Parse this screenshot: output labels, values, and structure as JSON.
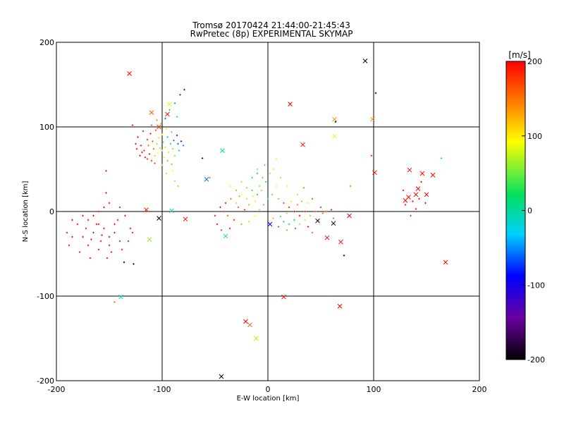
{
  "chart_data": {
    "type": "scatter",
    "title": "Tromsø 20170424 21:44:00-21:45:43",
    "subtitle": "RwPretec (8p) EXPERIMENTAL SKYMAP",
    "xlabel": "E-W location [km]",
    "ylabel": "N-S location [km]",
    "xlim": [
      -200,
      200
    ],
    "ylim": [
      -200,
      200
    ],
    "xticks": [
      "-200",
      "-100",
      "0",
      "100",
      "200"
    ],
    "yticks": [
      "-200",
      "-100",
      "0",
      "100",
      "200"
    ],
    "grid": true,
    "colorbar": {
      "unit": "[m/s]",
      "min": -200,
      "max": 200,
      "ticks": [
        "200",
        "100",
        "0",
        "-100",
        "-200"
      ],
      "colormap": [
        "#000000",
        "#6a00a0",
        "#0000ff",
        "#00d0ff",
        "#00e060",
        "#ffff00",
        "#ff8000",
        "#ff0000"
      ]
    },
    "series": [
      {
        "marker": "x",
        "points": [
          [
            -131,
            163,
            200
          ],
          [
            -110,
            117,
            160
          ],
          [
            -95,
            115,
            190
          ],
          [
            -93,
            127,
            80
          ],
          [
            -103,
            100,
            170
          ],
          [
            -115,
            2,
            190
          ],
          [
            -103,
            -8,
            -200
          ],
          [
            -78,
            -9,
            200
          ],
          [
            -112,
            -33,
            60
          ],
          [
            -58,
            38,
            -60
          ],
          [
            -91,
            1,
            -10
          ],
          [
            -139,
            -101,
            -20
          ],
          [
            -43,
            72,
            20
          ],
          [
            -40,
            -29,
            0
          ],
          [
            -21,
            -130,
            200
          ],
          [
            -17,
            -134,
            160
          ],
          [
            -11,
            -150,
            110
          ],
          [
            -44,
            -195,
            -200
          ],
          [
            2,
            -15,
            -100
          ],
          [
            15,
            -101,
            200
          ],
          [
            21,
            127,
            200
          ],
          [
            33,
            79,
            200
          ],
          [
            47,
            -11,
            -200
          ],
          [
            56,
            -31,
            200
          ],
          [
            62,
            -14,
            -200
          ],
          [
            63,
            109,
            140
          ],
          [
            63,
            89,
            80
          ],
          [
            69,
            -36,
            200
          ],
          [
            68,
            -112,
            200
          ],
          [
            77,
            -5,
            200
          ],
          [
            92,
            178,
            -200
          ],
          [
            99,
            109,
            140
          ],
          [
            101,
            46,
            200
          ],
          [
            134,
            49,
            200
          ],
          [
            146,
            45,
            200
          ],
          [
            156,
            43,
            200
          ],
          [
            150,
            20,
            200
          ],
          [
            142,
            27,
            200
          ],
          [
            140,
            20,
            200
          ],
          [
            133,
            17,
            200
          ],
          [
            130,
            13,
            200
          ],
          [
            168,
            -60,
            200
          ]
        ]
      },
      {
        "marker": "dot",
        "points": [
          [
            -114,
            85,
            190
          ],
          [
            -120,
            78,
            200
          ],
          [
            -117,
            72,
            180
          ],
          [
            -112,
            68,
            200
          ],
          [
            -108,
            74,
            160
          ],
          [
            -105,
            80,
            120
          ],
          [
            -100,
            72,
            80
          ],
          [
            -97,
            76,
            70
          ],
          [
            -110,
            60,
            180
          ],
          [
            -116,
            64,
            200
          ],
          [
            -119,
            70,
            200
          ],
          [
            -113,
            78,
            150
          ],
          [
            -107,
            66,
            110
          ],
          [
            -104,
            69,
            90
          ],
          [
            -102,
            75,
            60
          ],
          [
            -99,
            82,
            40
          ],
          [
            -95,
            88,
            20
          ],
          [
            -92,
            80,
            10
          ],
          [
            -89,
            84,
            -60
          ],
          [
            -86,
            90,
            -80
          ],
          [
            -85,
            80,
            -70
          ],
          [
            -82,
            83,
            -90
          ],
          [
            -80,
            78,
            -60
          ],
          [
            -91,
            94,
            40
          ],
          [
            -96,
            98,
            80
          ],
          [
            -101,
            104,
            130
          ],
          [
            -106,
            96,
            170
          ],
          [
            -111,
            92,
            190
          ],
          [
            -118,
            95,
            200
          ],
          [
            -123,
            88,
            200
          ],
          [
            -124,
            74,
            200
          ],
          [
            -121,
            66,
            200
          ],
          [
            -114,
            62,
            180
          ],
          [
            -98,
            64,
            100
          ],
          [
            -94,
            70,
            70
          ],
          [
            -90,
            74,
            50
          ],
          [
            -88,
            66,
            60
          ],
          [
            -84,
            72,
            -40
          ],
          [
            -97,
            110,
            -60
          ],
          [
            -93,
            120,
            20
          ],
          [
            -88,
            128,
            -50
          ],
          [
            -83,
            138,
            -80
          ],
          [
            -79,
            144,
            -90
          ],
          [
            -86,
            112,
            10
          ],
          [
            -105,
            108,
            140
          ],
          [
            -110,
            102,
            170
          ],
          [
            -128,
            102,
            200
          ],
          [
            -125,
            80,
            200
          ],
          [
            -109,
            83,
            160
          ],
          [
            -103,
            87,
            110
          ],
          [
            -100,
            91,
            90
          ],
          [
            -95,
            60,
            130
          ],
          [
            -91,
            56,
            140
          ],
          [
            -100,
            55,
            120
          ],
          [
            -107,
            57,
            170
          ],
          [
            -96,
            45,
            110
          ],
          [
            -90,
            48,
            90
          ],
          [
            -88,
            36,
            60
          ],
          [
            -85,
            30,
            120
          ],
          [
            -62,
            63,
            -200
          ],
          [
            -55,
            40,
            150
          ],
          [
            -170,
            -10,
            200
          ],
          [
            -160,
            -15,
            200
          ],
          [
            -155,
            -20,
            200
          ],
          [
            -165,
            -25,
            200
          ],
          [
            -175,
            -30,
            200
          ],
          [
            -150,
            -30,
            200
          ],
          [
            -158,
            -35,
            200
          ],
          [
            -145,
            -25,
            200
          ],
          [
            -180,
            -15,
            200
          ],
          [
            -185,
            -30,
            200
          ],
          [
            -170,
            -40,
            200
          ],
          [
            -160,
            -45,
            200
          ],
          [
            -150,
            -40,
            200
          ],
          [
            -140,
            -35,
            200
          ],
          [
            -145,
            -15,
            200
          ],
          [
            -135,
            -5,
            200
          ],
          [
            -130,
            -20,
            200
          ],
          [
            -165,
            -5,
            200
          ],
          [
            -175,
            -5,
            200
          ],
          [
            -185,
            -10,
            200
          ],
          [
            -190,
            -25,
            200
          ],
          [
            -188,
            -40,
            200
          ],
          [
            -178,
            -48,
            200
          ],
          [
            -168,
            -55,
            200
          ],
          [
            -152,
            -55,
            200
          ],
          [
            -148,
            -48,
            200
          ],
          [
            -138,
            -45,
            200
          ],
          [
            -132,
            -35,
            200
          ],
          [
            -128,
            -25,
            200
          ],
          [
            -140,
            5,
            200
          ],
          [
            -150,
            10,
            200
          ],
          [
            -155,
            5,
            200
          ],
          [
            -162,
            -15,
            200
          ],
          [
            -157,
            -28,
            200
          ],
          [
            -167,
            -33,
            200
          ],
          [
            -153,
            22,
            200
          ],
          [
            -153,
            48,
            200
          ],
          [
            -160,
            0,
            200
          ],
          [
            -172,
            -20,
            200
          ],
          [
            -142,
            -10,
            200
          ],
          [
            -136,
            -60,
            -200
          ],
          [
            -127,
            -62,
            -200
          ],
          [
            -145,
            -107,
            160
          ],
          [
            -35,
            15,
            150
          ],
          [
            -30,
            10,
            110
          ],
          [
            -25,
            20,
            90
          ],
          [
            -20,
            15,
            70
          ],
          [
            -15,
            25,
            40
          ],
          [
            -10,
            20,
            20
          ],
          [
            -28,
            5,
            160
          ],
          [
            -22,
            2,
            180
          ],
          [
            -18,
            8,
            130
          ],
          [
            -12,
            12,
            100
          ],
          [
            -8,
            30,
            60
          ],
          [
            -5,
            40,
            40
          ],
          [
            -2,
            35,
            20
          ],
          [
            2,
            45,
            60
          ],
          [
            5,
            50,
            80
          ],
          [
            -30,
            25,
            130
          ],
          [
            -35,
            30,
            90
          ],
          [
            -25,
            35,
            60
          ],
          [
            -15,
            40,
            30
          ],
          [
            -10,
            45,
            10
          ],
          [
            -40,
            10,
            200
          ],
          [
            -42,
            0,
            180
          ],
          [
            -38,
            -5,
            160
          ],
          [
            -32,
            -10,
            190
          ],
          [
            -25,
            -15,
            140
          ],
          [
            -18,
            -12,
            110
          ],
          [
            -12,
            -5,
            90
          ],
          [
            -8,
            2,
            60
          ],
          [
            -4,
            8,
            40
          ],
          [
            0,
            15,
            20
          ],
          [
            -20,
            28,
            50
          ],
          [
            -27,
            18,
            130
          ],
          [
            -14,
            18,
            80
          ],
          [
            -6,
            25,
            60
          ],
          [
            4,
            20,
            40
          ],
          [
            8,
            30,
            100
          ],
          [
            10,
            15,
            130
          ],
          [
            15,
            10,
            170
          ],
          [
            20,
            5,
            190
          ],
          [
            25,
            0,
            200
          ],
          [
            30,
            -5,
            200
          ],
          [
            35,
            0,
            180
          ],
          [
            28,
            8,
            140
          ],
          [
            22,
            12,
            100
          ],
          [
            18,
            -2,
            60
          ],
          [
            12,
            -6,
            30
          ],
          [
            15,
            -12,
            10
          ],
          [
            20,
            -15,
            -10
          ],
          [
            25,
            -10,
            20
          ],
          [
            30,
            -15,
            60
          ],
          [
            35,
            -10,
            100
          ],
          [
            40,
            -5,
            130
          ],
          [
            45,
            0,
            160
          ],
          [
            50,
            5,
            190
          ],
          [
            52,
            -2,
            150
          ],
          [
            26,
            -20,
            180
          ],
          [
            18,
            -22,
            140
          ],
          [
            10,
            -18,
            170
          ],
          [
            5,
            -8,
            120
          ],
          [
            38,
            -18,
            200
          ],
          [
            42,
            -25,
            160
          ],
          [
            48,
            -12,
            190
          ],
          [
            55,
            0,
            170
          ],
          [
            32,
            12,
            130
          ],
          [
            38,
            10,
            80
          ],
          [
            60,
            2,
            200
          ],
          [
            62,
            -8,
            160
          ],
          [
            -45,
            5,
            200
          ],
          [
            -50,
            -5,
            200
          ],
          [
            -48,
            -15,
            200
          ],
          [
            -44,
            -22,
            180
          ],
          [
            -36,
            -20,
            200
          ],
          [
            -10,
            50,
            60
          ],
          [
            -3,
            55,
            40
          ],
          [
            8,
            62,
            100
          ],
          [
            12,
            40,
            60
          ],
          [
            18,
            30,
            80
          ],
          [
            28,
            20,
            110
          ],
          [
            34,
            28,
            150
          ],
          [
            42,
            15,
            170
          ],
          [
            64,
            106,
            -200
          ],
          [
            72,
            -52,
            -200
          ],
          [
            78,
            30,
            150
          ],
          [
            98,
            66,
            200
          ],
          [
            102,
            140,
            -200
          ],
          [
            164,
            63,
            10
          ],
          [
            130,
            8,
            200
          ],
          [
            137,
            12,
            200
          ],
          [
            143,
            15,
            200
          ],
          [
            149,
            10,
            200
          ],
          [
            135,
            -5,
            180
          ],
          [
            128,
            25,
            200
          ],
          [
            145,
            35,
            200
          ],
          [
            140,
            3,
            200
          ]
        ]
      }
    ]
  }
}
